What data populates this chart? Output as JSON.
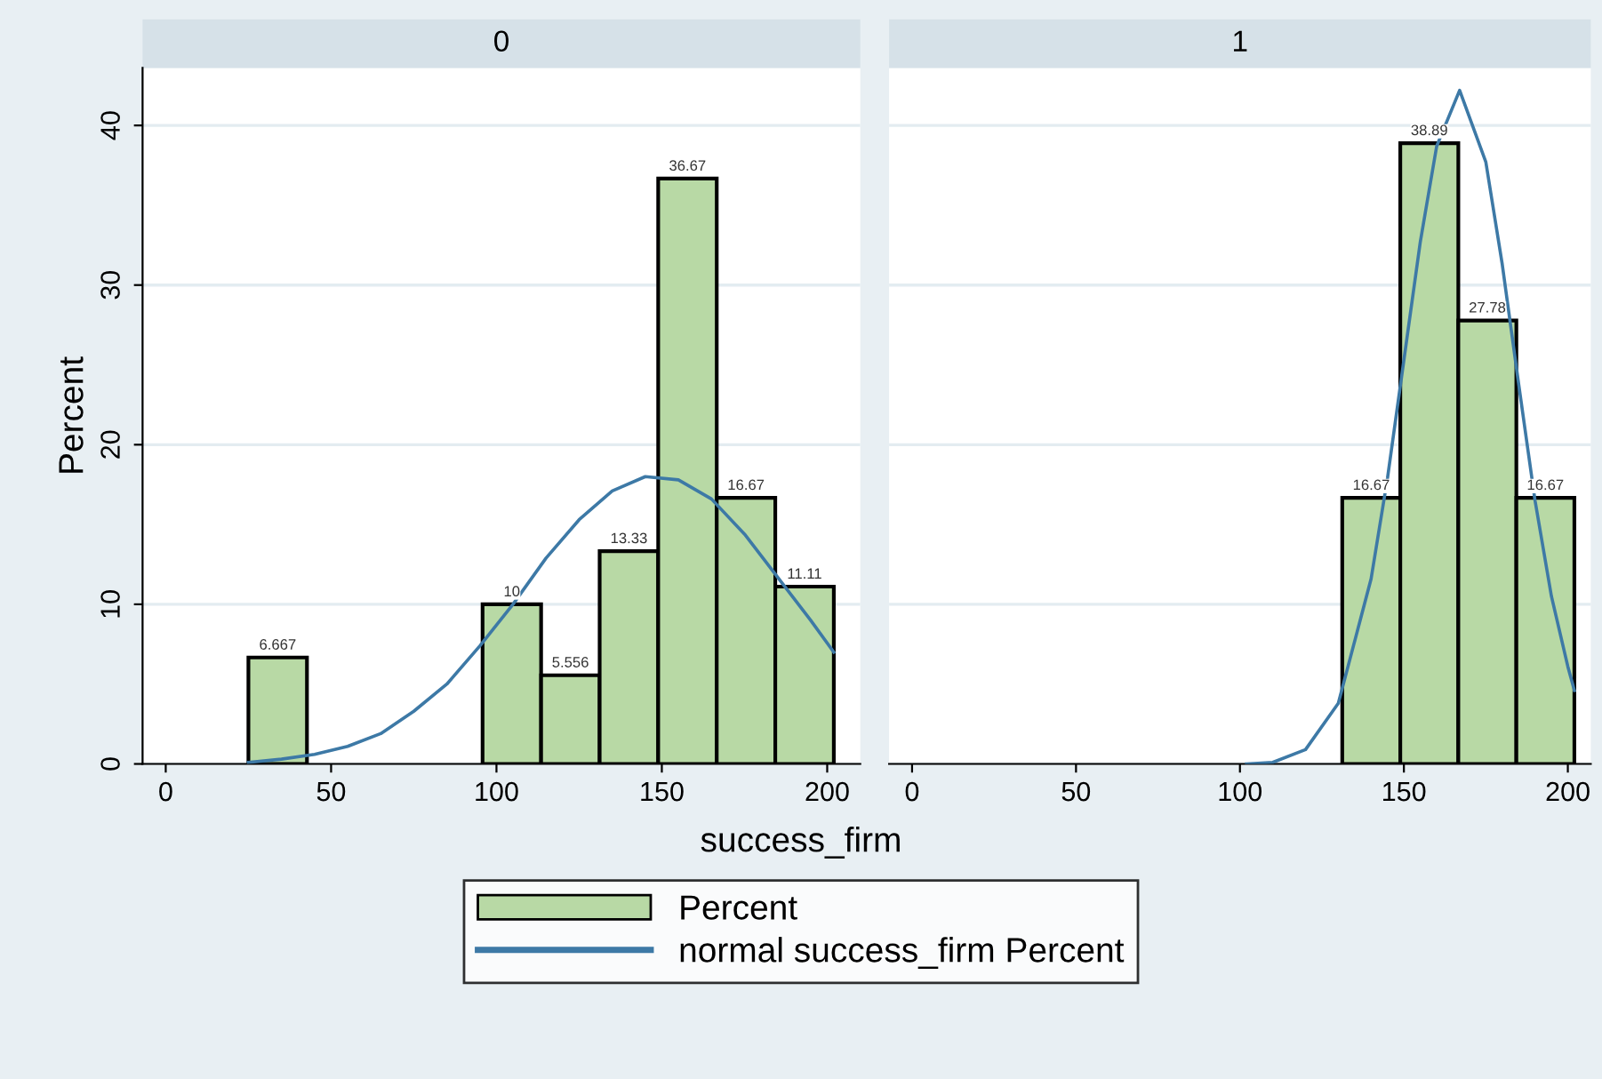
{
  "chart_data": [
    {
      "type": "histogram",
      "title": "0",
      "xlabel": "success_firm",
      "ylabel": "Percent",
      "xlim": [
        -7,
        210
      ],
      "ylim": [
        0,
        43.6
      ],
      "xticks": [
        0,
        50,
        100,
        150,
        200
      ],
      "yticks": [
        0,
        10,
        20,
        30,
        40
      ],
      "grid": "y",
      "legend": "bottom",
      "series": [
        {
          "name": "Percent",
          "color": "#b8d9a5",
          "bins": [
            25,
            42.7,
            60.4,
            78.1,
            95.8,
            113.5,
            131.2,
            148.9,
            166.6,
            184.3,
            202
          ],
          "values": [
            6.667,
            0,
            0,
            0,
            10,
            5.556,
            13.33,
            36.67,
            16.67,
            11.11
          ],
          "value_labels": [
            "6.667",
            null,
            null,
            null,
            "10",
            "5.556",
            "13.33",
            "36.67",
            "16.67",
            "11.11"
          ]
        },
        {
          "type": "line",
          "name": "normal success_firm Percent",
          "color": "#3d79a6",
          "x": [
            25,
            35,
            45,
            55,
            65,
            75,
            85,
            95,
            105,
            115,
            125,
            135,
            145,
            155,
            165,
            175,
            185,
            195,
            202
          ],
          "values": [
            0.1,
            0.3,
            0.6,
            1.1,
            1.9,
            3.3,
            5.0,
            7.4,
            10.0,
            12.9,
            15.3,
            17.1,
            18.0,
            17.8,
            16.6,
            14.4,
            11.7,
            9.0,
            7.0
          ]
        }
      ]
    },
    {
      "type": "histogram",
      "title": "1",
      "xlim": [
        -7,
        207
      ],
      "ylim": [
        0,
        43.6
      ],
      "xticks": [
        0,
        50,
        100,
        150,
        200
      ],
      "yticks": [
        0,
        10,
        20,
        30,
        40
      ],
      "grid": "y",
      "tick_labels": "x",
      "series": [
        {
          "color": "#b8d9a5",
          "bins": [
            131.2,
            148.9,
            166.6,
            184.3,
            202
          ],
          "values": [
            16.67,
            38.89,
            27.78,
            16.67
          ],
          "value_labels": [
            "16.67",
            "38.89",
            "27.78",
            "16.67"
          ]
        },
        {
          "type": "line",
          "color": "#3d79a6",
          "x": [
            102,
            110,
            120,
            130,
            140,
            145,
            150,
            155,
            160,
            167,
            175,
            180,
            185,
            190,
            195,
            200,
            202
          ],
          "values": [
            0,
            0.1,
            0.9,
            3.8,
            11.6,
            17.9,
            25.3,
            32.7,
            38.7,
            42.2,
            37.7,
            31.3,
            23.8,
            16.5,
            10.5,
            6.1,
            4.6
          ]
        }
      ]
    }
  ]
}
